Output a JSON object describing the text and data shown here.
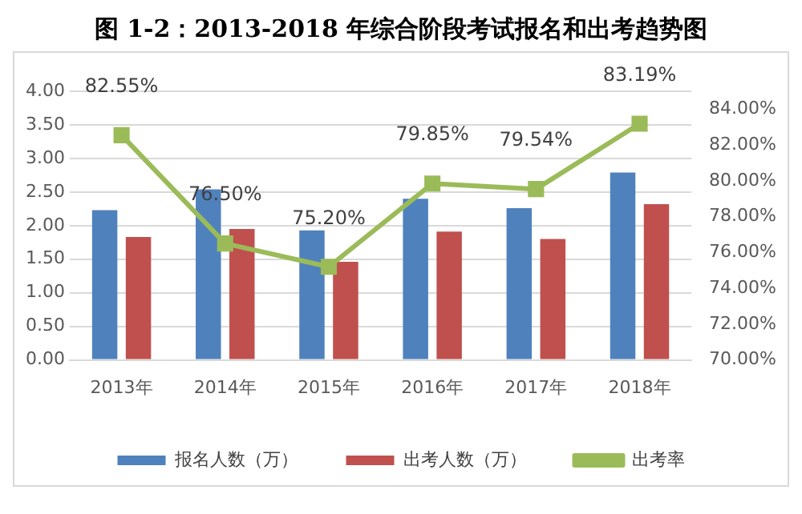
{
  "chart_data": {
    "type": "bar",
    "title": "图 1-2：2013-2018 年综合阶段考试报名和出考趋势图",
    "categories": [
      "2013年",
      "2014年",
      "2015年",
      "2016年",
      "2017年",
      "2018年"
    ],
    "series": [
      {
        "name": "报名人数（万）",
        "color": "#4f81bd",
        "values": [
          2.23,
          2.54,
          1.93,
          2.4,
          2.26,
          2.79
        ]
      },
      {
        "name": "出考人数（万）",
        "color": "#c0504d",
        "values": [
          1.83,
          1.95,
          1.46,
          1.91,
          1.8,
          2.32
        ]
      },
      {
        "name": "出考率",
        "type": "line",
        "axis": "y2",
        "color": "#9bbb59",
        "marker": "square",
        "values": [
          82.55,
          76.5,
          75.2,
          79.85,
          79.54,
          83.19
        ],
        "value_labels": [
          "82.55%",
          "76.50%",
          "75.20%",
          "79.85%",
          "79.54%",
          "83.19%"
        ]
      }
    ],
    "ylim": [
      0,
      4
    ],
    "yticks": [
      {
        "value": 0,
        "label": "0.00"
      },
      {
        "value": 0.5,
        "label": "0.50"
      },
      {
        "value": 1,
        "label": "1.00"
      },
      {
        "value": 1.5,
        "label": "1.50"
      },
      {
        "value": 2,
        "label": "2.00"
      },
      {
        "value": 2.5,
        "label": "2.50"
      },
      {
        "value": 3,
        "label": "3.00"
      },
      {
        "value": 3.5,
        "label": "3.50"
      },
      {
        "value": 4,
        "label": "4.00"
      }
    ],
    "y2lim": [
      70,
      85
    ],
    "y2ticks": [
      {
        "value": 70,
        "label": "70.00%"
      },
      {
        "value": 72,
        "label": "72.00%"
      },
      {
        "value": 74,
        "label": "74.00%"
      },
      {
        "value": 76,
        "label": "76.00%"
      },
      {
        "value": 78,
        "label": "78.00%"
      },
      {
        "value": 80,
        "label": "80.00%"
      },
      {
        "value": 82,
        "label": "82.00%"
      },
      {
        "value": 84,
        "label": "84.00%"
      }
    ],
    "grid": "y",
    "legend": "bottom"
  }
}
